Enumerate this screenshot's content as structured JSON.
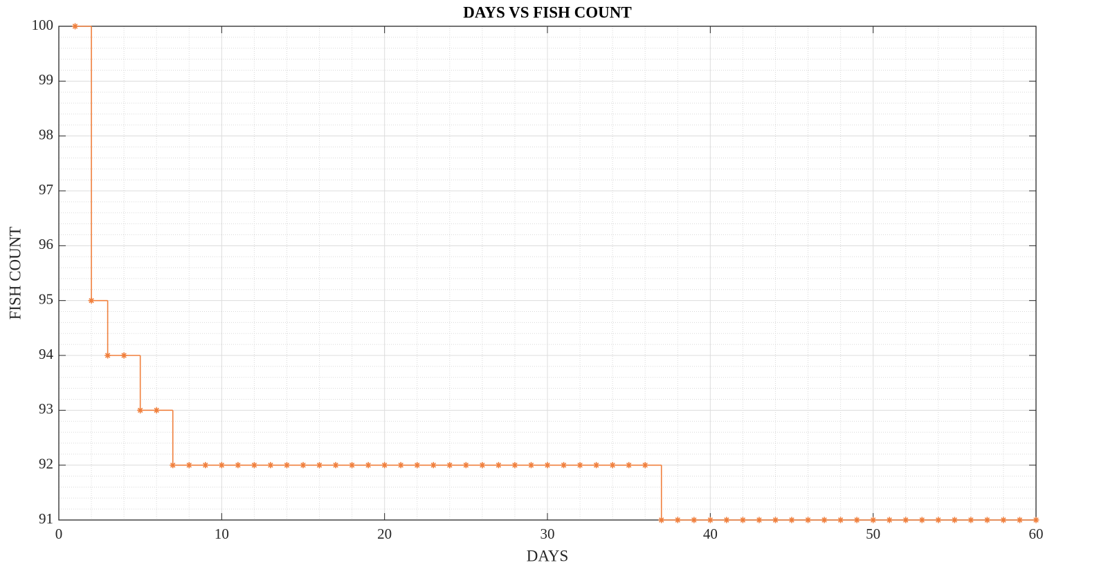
{
  "chart_data": {
    "type": "stairs",
    "title": "DAYS VS FISH COUNT",
    "x_label": "DAYS",
    "y_label": "FISH COUNT",
    "x": [
      1,
      2,
      3,
      4,
      5,
      6,
      7,
      8,
      9,
      10,
      11,
      12,
      13,
      14,
      15,
      16,
      17,
      18,
      19,
      20,
      21,
      22,
      23,
      24,
      25,
      26,
      27,
      28,
      29,
      30,
      31,
      32,
      33,
      34,
      35,
      36,
      37,
      38,
      39,
      40,
      41,
      42,
      43,
      44,
      45,
      46,
      47,
      48,
      49,
      50,
      51,
      52,
      53,
      54,
      55,
      56,
      57,
      58,
      59,
      60
    ],
    "values": [
      100,
      95,
      94,
      94,
      93,
      93,
      92,
      92,
      92,
      92,
      92,
      92,
      92,
      92,
      92,
      92,
      92,
      92,
      92,
      92,
      92,
      92,
      92,
      92,
      92,
      92,
      92,
      92,
      92,
      92,
      92,
      92,
      92,
      92,
      92,
      92,
      91,
      91,
      91,
      91,
      91,
      91,
      91,
      91,
      91,
      91,
      91,
      91,
      91,
      91,
      91,
      91,
      91,
      91,
      91,
      91,
      91,
      91,
      91,
      91
    ],
    "color": "#f07f3c",
    "marker": "asterisk",
    "xlim": [
      0,
      60
    ],
    "xticks": [
      0,
      10,
      20,
      30,
      40,
      50,
      60
    ],
    "ylim": [
      91,
      100
    ],
    "yticks": [
      91,
      92,
      93,
      94,
      95,
      96,
      97,
      98,
      99,
      100
    ],
    "grid": true,
    "minor_grid": true
  }
}
